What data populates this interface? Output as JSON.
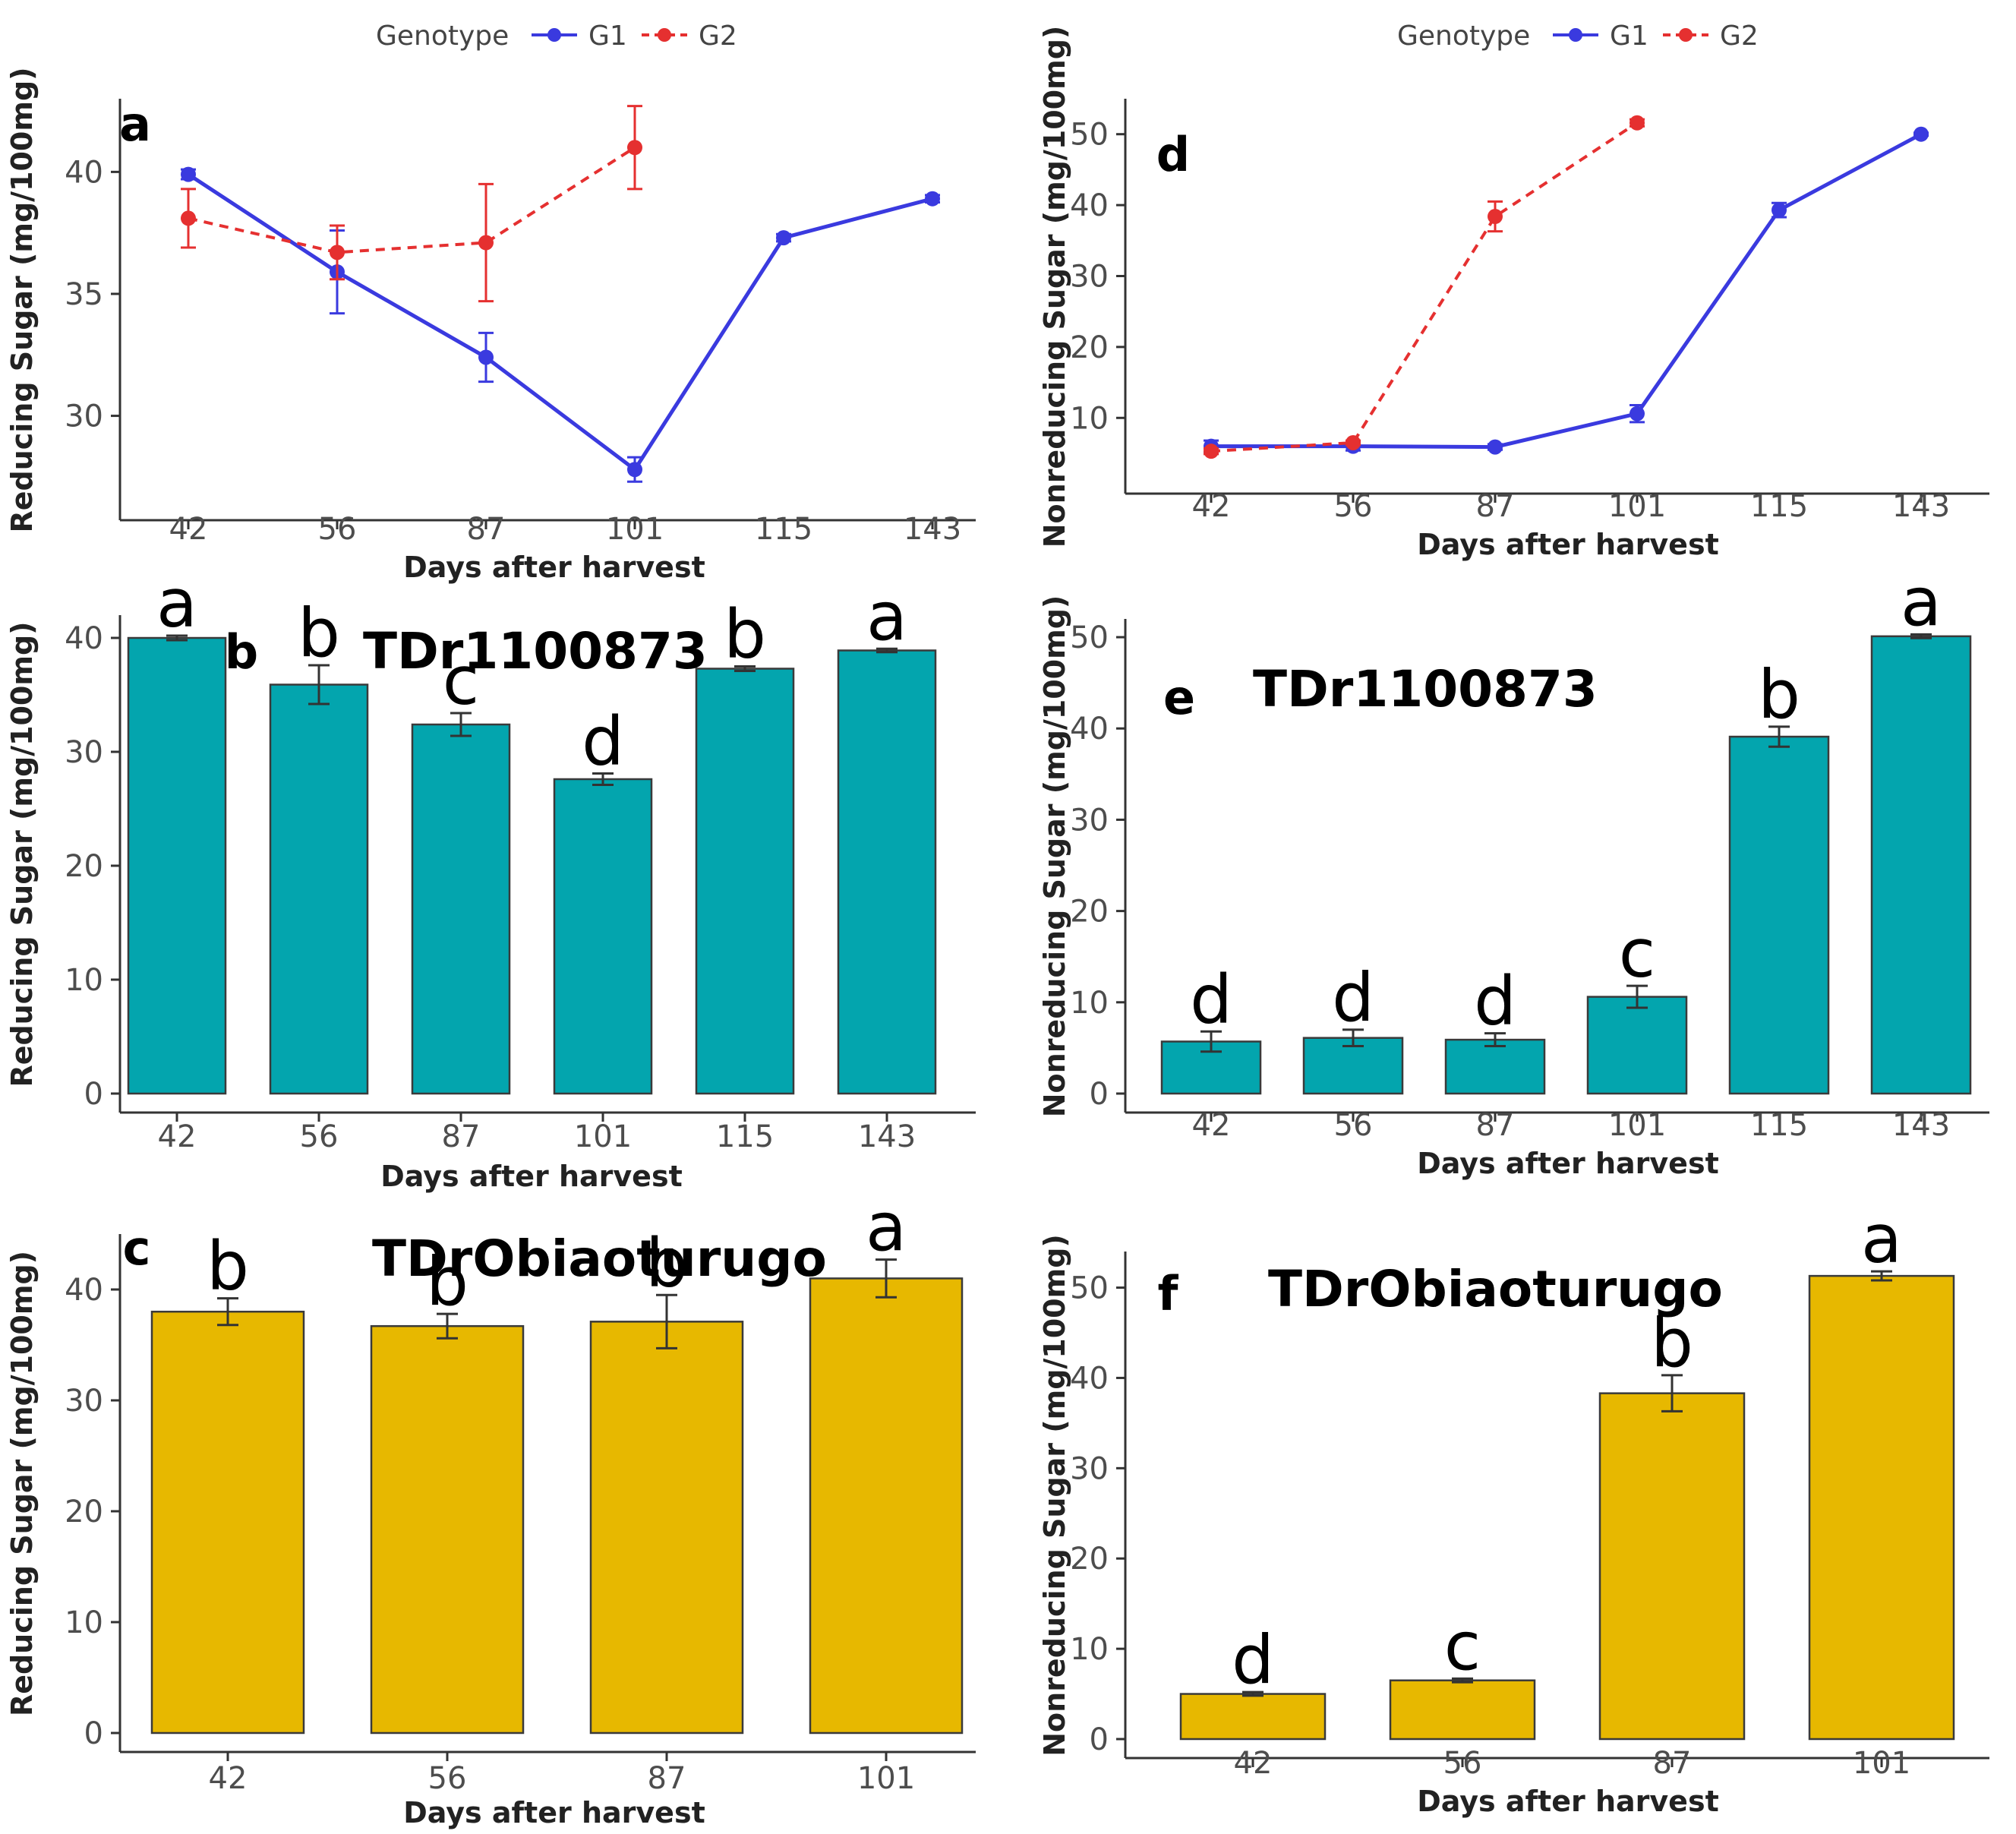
{
  "chart_data": [
    {
      "panel": "a",
      "type": "line",
      "legend_title": "Genotype",
      "legend_position": "top",
      "xlabel": "Days after harvest",
      "ylabel": "Reducing Sugar (mg/100mg)",
      "categories": [
        "42",
        "56",
        "87",
        "101",
        "115",
        "143"
      ],
      "ylim": [
        26.5,
        43
      ],
      "yticks": [
        30,
        35,
        40
      ],
      "series": [
        {
          "name": "G1",
          "color": "#3a3adf",
          "dashed": false,
          "values": [
            39.9,
            35.9,
            32.4,
            27.8,
            37.3,
            38.9
          ],
          "errors": [
            0.2,
            1.7,
            1.0,
            0.5,
            0.15,
            0.15
          ]
        },
        {
          "name": "G2",
          "color": "#e53030",
          "dashed": true,
          "values": [
            38.1,
            36.7,
            37.1,
            41.0,
            null,
            null
          ],
          "errors": [
            1.2,
            1.1,
            2.4,
            1.7,
            null,
            null
          ]
        }
      ]
    },
    {
      "panel": "b",
      "type": "bar",
      "title": "TDr1100873",
      "color": "#03a5ae",
      "xlabel": "Days after harvest",
      "ylabel": "Reducing Sugar (mg/100mg)",
      "categories": [
        "42",
        "56",
        "87",
        "101",
        "115",
        "143"
      ],
      "values": [
        40.0,
        35.9,
        32.4,
        27.6,
        37.3,
        38.9
      ],
      "errors": [
        0.2,
        1.7,
        1.0,
        0.5,
        0.2,
        0.15
      ],
      "letters": [
        "a",
        "b",
        "c",
        "d",
        "b",
        "a"
      ],
      "ylim": [
        0,
        42
      ],
      "yticks": [
        0,
        10,
        20,
        30,
        40
      ]
    },
    {
      "panel": "c",
      "type": "bar",
      "title": "TDrObiaoturugo",
      "color": "#e7b800",
      "xlabel": "Days after harvest",
      "ylabel": "Reducing Sugar (mg/100mg)",
      "categories": [
        "42",
        "56",
        "87",
        "101"
      ],
      "values": [
        38.0,
        36.7,
        37.1,
        41.0
      ],
      "errors": [
        1.2,
        1.1,
        2.4,
        1.7
      ],
      "letters": [
        "b",
        "b",
        "b",
        "a"
      ],
      "ylim": [
        0,
        45
      ],
      "yticks": [
        0,
        10,
        20,
        30,
        40
      ]
    },
    {
      "panel": "d",
      "type": "line",
      "legend_title": "Genotype",
      "legend_position": "top",
      "xlabel": "Days after harvest",
      "ylabel": "Nonreducing Sugar (mg/100mg)",
      "categories": [
        "42",
        "56",
        "87",
        "101",
        "115",
        "143"
      ],
      "ylim": [
        2,
        55
      ],
      "yticks": [
        10,
        20,
        30,
        40,
        50
      ],
      "series": [
        {
          "name": "G1",
          "color": "#3a3adf",
          "dashed": false,
          "values": [
            6.0,
            6.0,
            5.9,
            10.6,
            39.3,
            50.0
          ],
          "errors": [
            0.8,
            0.6,
            0.4,
            1.2,
            1.0,
            0.2
          ]
        },
        {
          "name": "G2",
          "color": "#e53030",
          "dashed": true,
          "values": [
            5.3,
            6.5,
            38.4,
            51.6,
            null,
            null
          ],
          "errors": [
            0.4,
            0.3,
            2.1,
            0.5,
            null,
            null
          ]
        }
      ]
    },
    {
      "panel": "e",
      "type": "bar",
      "title": "TDr1100873",
      "color": "#03a5ae",
      "xlabel": "Days after harvest",
      "ylabel": "Nonreducing Sugar (mg/100mg)",
      "categories": [
        "42",
        "56",
        "87",
        "101",
        "115",
        "143"
      ],
      "values": [
        5.7,
        6.1,
        5.9,
        10.6,
        39.1,
        50.1
      ],
      "errors": [
        1.1,
        0.9,
        0.7,
        1.2,
        1.1,
        0.2
      ],
      "letters": [
        "d",
        "d",
        "d",
        "c",
        "b",
        "a"
      ],
      "ylim": [
        0,
        52
      ],
      "yticks": [
        0,
        10,
        20,
        30,
        40,
        50
      ]
    },
    {
      "panel": "f",
      "type": "bar",
      "title": "TDrObiaoturugo",
      "color": "#e7b800",
      "xlabel": "Days after harvest",
      "ylabel": "Nonreducing Sugar (mg/100mg)",
      "categories": [
        "42",
        "56",
        "87",
        "101"
      ],
      "values": [
        5.0,
        6.5,
        38.3,
        51.3
      ],
      "errors": [
        0.2,
        0.2,
        2.0,
        0.5
      ],
      "letters": [
        "d",
        "c",
        "b",
        "a"
      ],
      "ylim": [
        0,
        54
      ],
      "yticks": [
        0,
        10,
        20,
        30,
        40,
        50
      ]
    }
  ]
}
